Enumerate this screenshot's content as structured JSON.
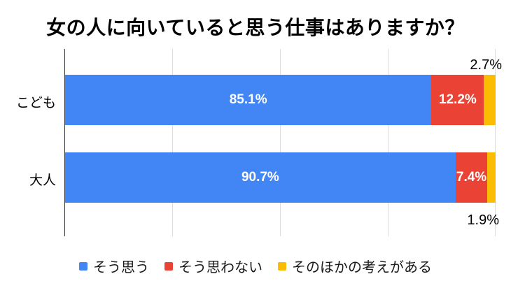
{
  "title": "女の人に向いていると思う仕事はありますか？",
  "colors": {
    "agree": "#4285F4",
    "disagree": "#EA4335",
    "other": "#FBBC04",
    "axis_line": "#333333",
    "gridline": "#DDDDDD",
    "inside_label_text": "#FFFFFF",
    "outside_label_text": "#000000",
    "background": "#FFFFFF"
  },
  "chart_data": {
    "type": "bar",
    "orientation": "horizontal",
    "stacked": true,
    "title": "女の人に向いていると思う仕事はありますか？",
    "categories": [
      "こども",
      "大人"
    ],
    "series": [
      {
        "name": "そう思う",
        "color": "#4285F4",
        "values": [
          85.1,
          90.7
        ]
      },
      {
        "name": "そう思わない",
        "color": "#EA4335",
        "values": [
          12.2,
          7.4
        ]
      },
      {
        "name": "そのほかの考えがある",
        "color": "#FBBC04",
        "values": [
          2.7,
          1.9
        ]
      }
    ],
    "xlim": [
      0,
      100
    ],
    "value_suffix": "%",
    "grid": true,
    "gridline_ticks_percent": [
      0,
      25,
      50,
      75,
      100
    ],
    "legend_position": "bottom"
  },
  "annotations": {
    "row0": {
      "agree": "85.1%",
      "disagree": "12.2%",
      "other": "2.7%"
    },
    "row1": {
      "agree": "90.7%",
      "disagree": "7.4%",
      "other": "1.9%"
    }
  }
}
